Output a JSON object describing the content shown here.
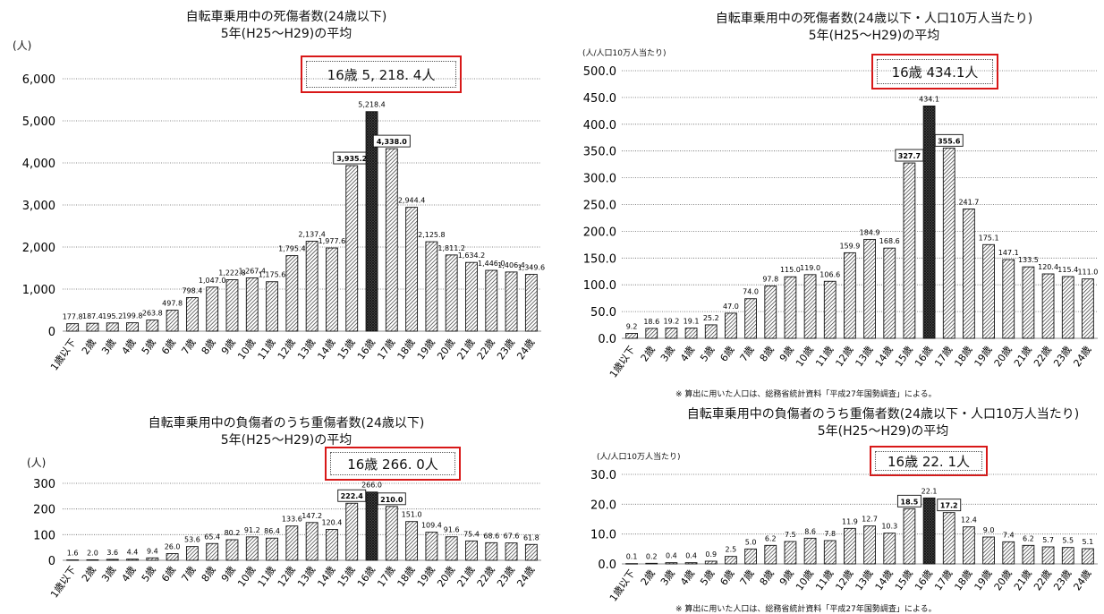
{
  "ages": [
    "1歳以下",
    "2歳",
    "3歳",
    "4歳",
    "5歳",
    "6歳",
    "7歳",
    "8歳",
    "9歳",
    "10歳",
    "11歳",
    "12歳",
    "13歳",
    "14歳",
    "15歳",
    "16歳",
    "17歳",
    "18歳",
    "19歳",
    "20歳",
    "21歳",
    "22歳",
    "23歳",
    "24歳"
  ],
  "chart_data": [
    {
      "type": "bar",
      "title": "自転車乗用中の死傷者数(24歳以下)",
      "subtitle": "5年(H25～H29)の平均",
      "unit_label": "(人)",
      "callout": "16歳 5, 218. 4人",
      "footnote": "",
      "categories": [
        "1歳以下",
        "2歳",
        "3歳",
        "4歳",
        "5歳",
        "6歳",
        "7歳",
        "8歳",
        "9歳",
        "10歳",
        "11歳",
        "12歳",
        "13歳",
        "14歳",
        "15歳",
        "16歳",
        "17歳",
        "18歳",
        "19歳",
        "20歳",
        "21歳",
        "22歳",
        "23歳",
        "24歳"
      ],
      "values": [
        177.8,
        187.4,
        195.2,
        199.8,
        263.8,
        497.8,
        798.4,
        1047.0,
        1222.8,
        1267.4,
        1175.6,
        1795.4,
        2137.4,
        1977.6,
        3935.2,
        5218.4,
        4338.0,
        2944.4,
        2125.8,
        1811.2,
        1634.2,
        1446.0,
        1406.4,
        1349.6
      ],
      "value_labels": [
        "177.8",
        "187.4",
        "195.2",
        "199.8",
        "263.8",
        "497.8",
        "798.4",
        "1,047.0",
        "1,222.8",
        "1,267.4",
        "1,175.6",
        "1,795.4",
        "2,137.4",
        "1,977.6",
        "3,935.2",
        "5,218.4",
        "4,338.0",
        "2,944.4",
        "2,125.8",
        "1,811.2",
        "1,634.2",
        "1,446.0",
        "1,406.4",
        "1,349.6"
      ],
      "yticks": [
        "0",
        "1,000",
        "2,000",
        "3,000",
        "4,000",
        "5,000",
        "6,000"
      ],
      "ylim": [
        0,
        6000
      ],
      "boxed": [
        14,
        16
      ],
      "highlight": 15,
      "grid": true
    },
    {
      "type": "bar",
      "title": "自転車乗用中の死傷者数(24歳以下・人口10万人当たり)",
      "subtitle": "5年(H25～H29)の平均",
      "unit_label": "(人/人口10万人当たり)",
      "callout": "16歳 434.1人",
      "footnote": "※ 算出に用いた人口は、総務省統計資料「平成27年国勢調査」による。",
      "categories": [
        "1歳以下",
        "2歳",
        "3歳",
        "4歳",
        "5歳",
        "6歳",
        "7歳",
        "8歳",
        "9歳",
        "10歳",
        "11歳",
        "12歳",
        "13歳",
        "14歳",
        "15歳",
        "16歳",
        "17歳",
        "18歳",
        "19歳",
        "20歳",
        "21歳",
        "22歳",
        "23歳",
        "24歳"
      ],
      "values": [
        9.2,
        18.6,
        19.2,
        19.1,
        25.2,
        47.0,
        74.0,
        97.8,
        115.0,
        119.0,
        106.6,
        159.9,
        184.9,
        168.6,
        327.7,
        434.1,
        355.6,
        241.7,
        175.1,
        147.1,
        133.5,
        120.4,
        115.4,
        111.0
      ],
      "value_labels": [
        "9.2",
        "18.6",
        "19.2",
        "19.1",
        "25.2",
        "47.0",
        "74.0",
        "97.8",
        "115.0",
        "119.0",
        "106.6",
        "159.9",
        "184.9",
        "168.6",
        "327.7",
        "434.1",
        "355.6",
        "241.7",
        "175.1",
        "147.1",
        "133.5",
        "120.4",
        "115.4",
        "111.0"
      ],
      "yticks": [
        "0.0",
        "50.0",
        "100.0",
        "150.0",
        "200.0",
        "250.0",
        "300.0",
        "350.0",
        "400.0",
        "450.0",
        "500.0"
      ],
      "ylim": [
        0,
        500
      ],
      "boxed": [
        14,
        16
      ],
      "highlight": 15,
      "grid": true
    },
    {
      "type": "bar",
      "title": "自転車乗用中の負傷者のうち重傷者数(24歳以下)",
      "subtitle": "5年(H25～H29)の平均",
      "unit_label": "(人)",
      "callout": "16歳 266. 0人",
      "footnote": "",
      "categories": [
        "1歳以下",
        "2歳",
        "3歳",
        "4歳",
        "5歳",
        "6歳",
        "7歳",
        "8歳",
        "9歳",
        "10歳",
        "11歳",
        "12歳",
        "13歳",
        "14歳",
        "15歳",
        "16歳",
        "17歳",
        "18歳",
        "19歳",
        "20歳",
        "21歳",
        "22歳",
        "23歳",
        "24歳"
      ],
      "values": [
        1.6,
        2.0,
        3.6,
        4.4,
        9.4,
        26.0,
        53.6,
        65.4,
        80.2,
        91.2,
        86.4,
        133.6,
        147.2,
        120.4,
        222.4,
        266.0,
        210.0,
        151.0,
        109.4,
        91.6,
        75.4,
        68.6,
        67.6,
        61.8
      ],
      "value_labels": [
        "1.6",
        "2.0",
        "3.6",
        "4.4",
        "9.4",
        "26.0",
        "53.6",
        "65.4",
        "80.2",
        "91.2",
        "86.4",
        "133.6",
        "147.2",
        "120.4",
        "222.4",
        "266.0",
        "210.0",
        "151.0",
        "109.4",
        "91.6",
        "75.4",
        "68.6",
        "67.6",
        "61.8"
      ],
      "yticks": [
        "0",
        "100",
        "200",
        "300"
      ],
      "ylim": [
        0,
        300
      ],
      "boxed": [
        14,
        16
      ],
      "highlight": 15,
      "grid": true
    },
    {
      "type": "bar",
      "title": "自転車乗用中の負傷者のうち重傷者数(24歳以下・人口10万人当たり)",
      "subtitle": "5年(H25～H29)の平均",
      "unit_label": "(人/人口10万人当たり)",
      "callout": "16歳 22. 1人",
      "footnote": "※ 算出に用いた人口は、総務省統計資料「平成27年国勢調査」による。",
      "categories": [
        "1歳以下",
        "2歳",
        "3歳",
        "4歳",
        "5歳",
        "6歳",
        "7歳",
        "8歳",
        "9歳",
        "10歳",
        "11歳",
        "12歳",
        "13歳",
        "14歳",
        "15歳",
        "16歳",
        "17歳",
        "18歳",
        "19歳",
        "20歳",
        "21歳",
        "22歳",
        "23歳",
        "24歳"
      ],
      "values": [
        0.1,
        0.2,
        0.4,
        0.4,
        0.9,
        2.5,
        5.0,
        6.2,
        7.5,
        8.6,
        7.8,
        11.9,
        12.7,
        10.3,
        18.5,
        22.1,
        17.2,
        12.4,
        9.0,
        7.4,
        6.2,
        5.7,
        5.5,
        5.1
      ],
      "value_labels": [
        "0.1",
        "0.2",
        "0.4",
        "0.4",
        "0.9",
        "2.5",
        "5.0",
        "6.2",
        "7.5",
        "8.6",
        "7.8",
        "11.9",
        "12.7",
        "10.3",
        "18.5",
        "22.1",
        "17.2",
        "12.4",
        "9.0",
        "7.4",
        "6.2",
        "5.7",
        "5.5",
        "5.1"
      ],
      "yticks": [
        "0.0",
        "10.0",
        "20.0",
        "30.0"
      ],
      "ylim": [
        0,
        30
      ],
      "boxed": [
        14,
        16
      ],
      "highlight": 15,
      "grid": true
    }
  ]
}
